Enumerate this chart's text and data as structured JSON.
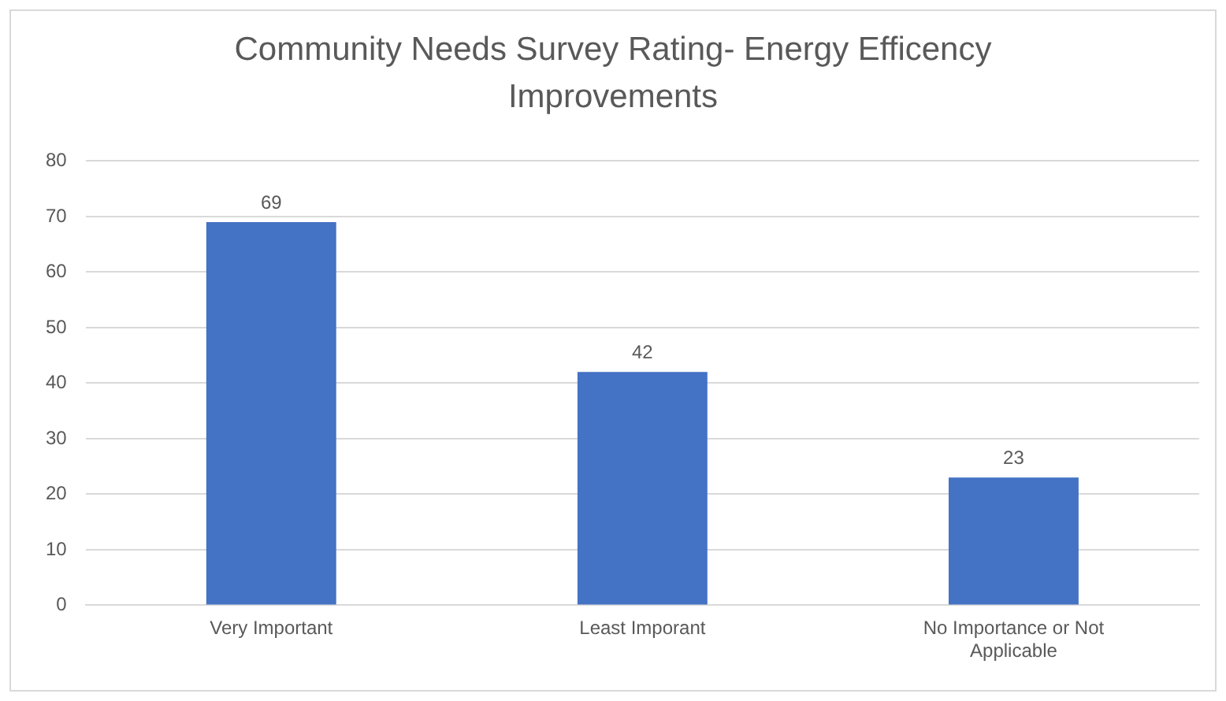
{
  "chart_data": {
    "type": "bar",
    "title": "Community Needs Survey Rating- Energy Efficency Improvements",
    "categories": [
      "Very Important",
      "Least Imporant",
      "No Importance or Not Applicable"
    ],
    "values": [
      69,
      42,
      23
    ],
    "color": "#4472c4",
    "ylim": [
      0,
      80
    ],
    "yticks": [
      0,
      10,
      20,
      30,
      40,
      50,
      60,
      70,
      80
    ],
    "grid": "y",
    "data_labels": true
  }
}
